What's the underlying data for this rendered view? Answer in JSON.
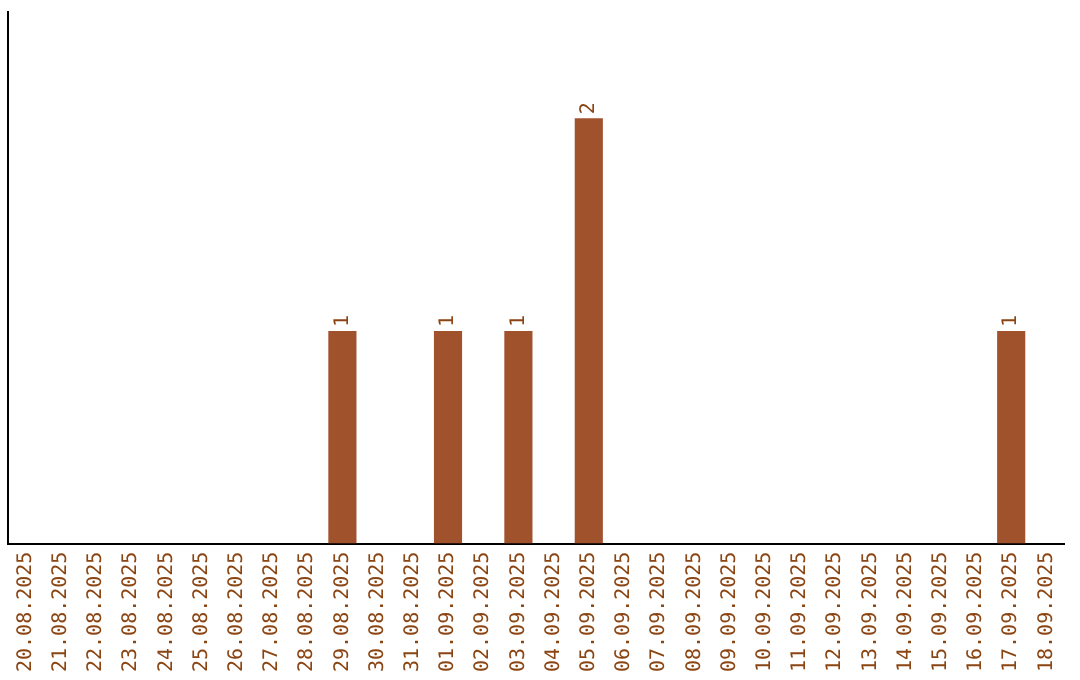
{
  "chart_data": {
    "type": "bar",
    "categories": [
      "20.08.2025",
      "21.08.2025",
      "22.08.2025",
      "23.08.2025",
      "24.08.2025",
      "25.08.2025",
      "26.08.2025",
      "27.08.2025",
      "28.08.2025",
      "29.08.2025",
      "30.08.2025",
      "31.08.2025",
      "01.09.2025",
      "02.09.2025",
      "03.09.2025",
      "04.09.2025",
      "05.09.2025",
      "06.09.2025",
      "07.09.2025",
      "08.09.2025",
      "09.09.2025",
      "10.09.2025",
      "11.09.2025",
      "12.09.2025",
      "13.09.2025",
      "14.09.2025",
      "15.09.2025",
      "16.09.2025",
      "17.09.2025",
      "18.09.2025"
    ],
    "values": [
      0,
      0,
      0,
      0,
      0,
      0,
      0,
      0,
      0,
      1,
      0,
      0,
      1,
      0,
      1,
      0,
      2,
      0,
      0,
      0,
      0,
      0,
      0,
      0,
      0,
      0,
      0,
      0,
      1,
      0
    ],
    "value_labels": [
      null,
      null,
      null,
      null,
      null,
      null,
      null,
      null,
      null,
      "1",
      null,
      null,
      "1",
      null,
      "1",
      null,
      "2",
      null,
      null,
      null,
      null,
      null,
      null,
      null,
      null,
      null,
      null,
      null,
      "1",
      null
    ],
    "color": "#a0522d",
    "grid": false,
    "legend": false,
    "tick_labels": "x"
  }
}
